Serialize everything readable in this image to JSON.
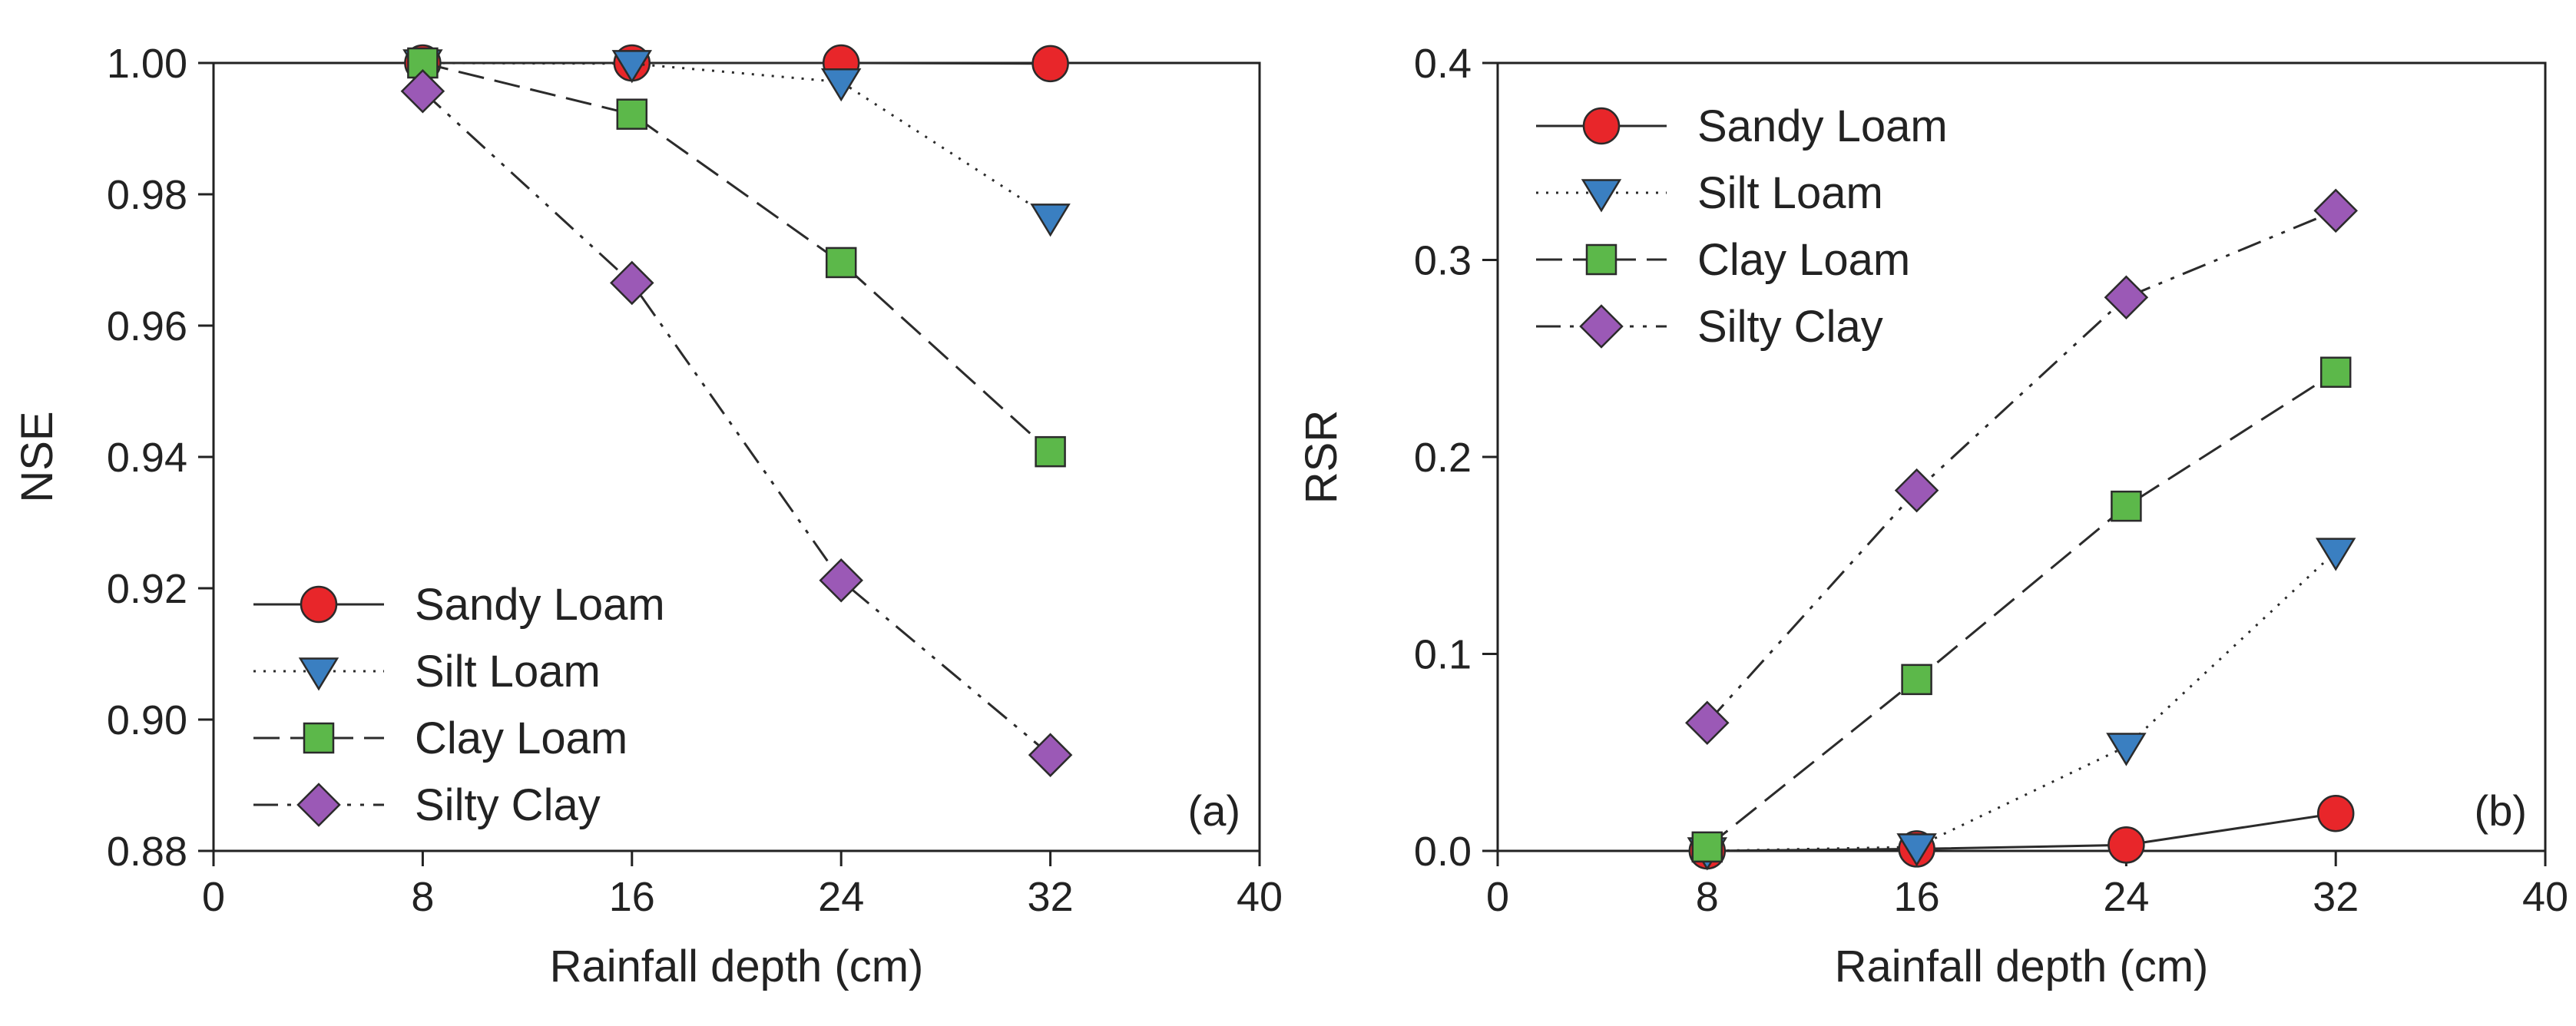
{
  "chart_data": [
    {
      "type": "line",
      "panel_label": "(a)",
      "xlabel": "Rainfall depth (cm)",
      "ylabel": "NSE",
      "xlim": [
        0,
        40
      ],
      "ylim": [
        0.88,
        1.0
      ],
      "xticks": [
        0,
        8,
        16,
        24,
        32,
        40
      ],
      "yticks": [
        0.88,
        0.9,
        0.92,
        0.94,
        0.96,
        0.98,
        1.0
      ],
      "ytick_labels": [
        "0.88",
        "0.90",
        "0.92",
        "0.94",
        "0.96",
        "0.98",
        "1.00"
      ],
      "legend_position": "bottom-left",
      "x": [
        8,
        16,
        24,
        32
      ],
      "series": [
        {
          "name": "Sandy Loam",
          "values": [
            1.0,
            1.0,
            1.0,
            0.9999
          ],
          "marker": "circle",
          "color": "#e8262a",
          "line_style": "solid"
        },
        {
          "name": "Silt Loam",
          "values": [
            1.0,
            0.9999,
            0.9971,
            0.9765
          ],
          "marker": "triangle-down",
          "color": "#3a7fc1",
          "line_style": "dotted"
        },
        {
          "name": "Clay Loam",
          "values": [
            1.0,
            0.9922,
            0.9696,
            0.9408
          ],
          "marker": "square",
          "color": "#5cb84a",
          "line_style": "dashed"
        },
        {
          "name": "Silty Clay",
          "values": [
            0.9957,
            0.9665,
            0.9212,
            0.8946
          ],
          "marker": "diamond",
          "color": "#9b59b6",
          "line_style": "dash-dot-dot"
        }
      ]
    },
    {
      "type": "line",
      "panel_label": "(b)",
      "xlabel": "Rainfall depth (cm)",
      "ylabel": "RSR",
      "xlim": [
        0,
        40
      ],
      "ylim": [
        0.0,
        0.4
      ],
      "xticks": [
        0,
        8,
        16,
        24,
        32,
        40
      ],
      "yticks": [
        0.0,
        0.1,
        0.2,
        0.3,
        0.4
      ],
      "ytick_labels": [
        "0.0",
        "0.1",
        "0.2",
        "0.3",
        "0.4"
      ],
      "legend_position": "top-left",
      "x": [
        8,
        16,
        24,
        32
      ],
      "series": [
        {
          "name": "Sandy Loam",
          "values": [
            0.0,
            0.001,
            0.003,
            0.019
          ],
          "marker": "circle",
          "color": "#e8262a",
          "line_style": "solid"
        },
        {
          "name": "Silt Loam",
          "values": [
            0.0,
            0.002,
            0.053,
            0.152
          ],
          "marker": "triangle-down",
          "color": "#3a7fc1",
          "line_style": "dotted"
        },
        {
          "name": "Clay Loam",
          "values": [
            0.002,
            0.087,
            0.175,
            0.243
          ],
          "marker": "square",
          "color": "#5cb84a",
          "line_style": "dashed"
        },
        {
          "name": "Silty Clay",
          "values": [
            0.065,
            0.183,
            0.281,
            0.325
          ],
          "marker": "diamond",
          "color": "#9b59b6",
          "line_style": "dash-dot-dot"
        }
      ]
    }
  ]
}
